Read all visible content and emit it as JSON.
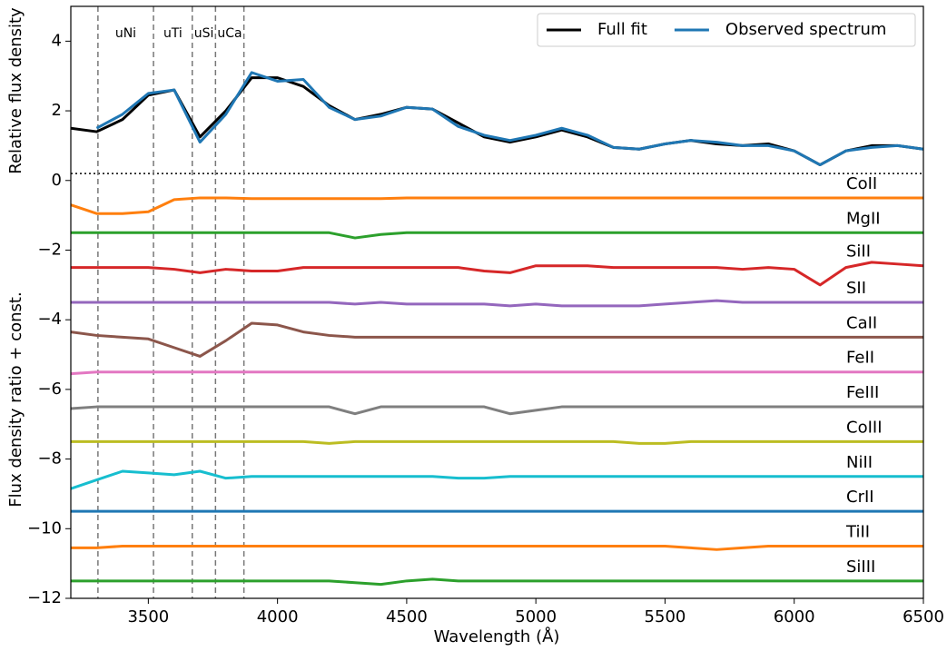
{
  "chart_data": {
    "type": "line",
    "xlabel": "Wavelength (Å)",
    "ylabels": [
      "Relative flux density",
      "Flux density ratio + const."
    ],
    "xlim": [
      3200,
      6500
    ],
    "ylim": [
      -12,
      5
    ],
    "xticks": [
      3500,
      4000,
      4500,
      5000,
      5500,
      6000,
      6500
    ],
    "yticks": [
      {
        "value": -12,
        "label": "−12"
      },
      {
        "value": -10,
        "label": "−10"
      },
      {
        "value": -8,
        "label": "−8"
      },
      {
        "value": -6,
        "label": "−6"
      },
      {
        "value": -4,
        "label": "−4"
      },
      {
        "value": -2,
        "label": "−2"
      },
      0,
      2,
      4
    ],
    "legend": "upper right",
    "hline": 0.2,
    "x": [
      3200,
      3300,
      3400,
      3500,
      3600,
      3700,
      3800,
      3900,
      4000,
      4100,
      4200,
      4300,
      4400,
      4500,
      4600,
      4700,
      4800,
      4900,
      5000,
      5100,
      5200,
      5300,
      5400,
      5500,
      5600,
      5700,
      5800,
      5900,
      6000,
      6100,
      6200,
      6300,
      6400,
      6500
    ],
    "series": [
      {
        "name": "Full fit",
        "color": "#000000",
        "values": [
          1.5,
          1.4,
          1.75,
          2.45,
          2.6,
          1.25,
          2.0,
          2.95,
          2.95,
          2.7,
          2.15,
          1.75,
          1.9,
          2.1,
          2.05,
          1.65,
          1.25,
          1.1,
          1.25,
          1.45,
          1.25,
          0.95,
          0.9,
          1.05,
          1.15,
          1.05,
          1.0,
          1.05,
          0.85,
          0.45,
          0.85,
          1.0,
          1.0,
          0.9
        ]
      },
      {
        "name": "Observed spectrum",
        "color": "#1f77b4",
        "values": [
          null,
          1.5,
          1.9,
          2.5,
          2.6,
          1.1,
          1.9,
          3.1,
          2.85,
          2.9,
          2.1,
          1.75,
          1.85,
          2.1,
          2.05,
          1.55,
          1.3,
          1.15,
          1.3,
          1.5,
          1.3,
          0.95,
          0.9,
          1.05,
          1.15,
          1.1,
          1.0,
          1.0,
          0.85,
          0.45,
          0.85,
          0.95,
          1.0,
          0.9
        ]
      }
    ],
    "components": [
      {
        "label": "CoII",
        "color": "#ff7f0e",
        "values": [
          -0.7,
          -0.95,
          -0.95,
          -0.9,
          -0.55,
          -0.5,
          -0.5,
          -0.52,
          -0.52,
          -0.52,
          -0.52,
          -0.52,
          -0.52,
          -0.5,
          -0.5,
          -0.5,
          -0.5,
          -0.5,
          -0.5,
          -0.5,
          -0.5,
          -0.5,
          -0.5,
          -0.5,
          -0.5,
          -0.5,
          -0.5,
          -0.5,
          -0.5,
          -0.5,
          -0.5,
          -0.5,
          -0.5,
          -0.5
        ]
      },
      {
        "label": "MgII",
        "color": "#2ca02c",
        "values": [
          -1.5,
          -1.5,
          -1.5,
          -1.5,
          -1.5,
          -1.5,
          -1.5,
          -1.5,
          -1.5,
          -1.5,
          -1.5,
          -1.65,
          -1.55,
          -1.5,
          -1.5,
          -1.5,
          -1.5,
          -1.5,
          -1.5,
          -1.5,
          -1.5,
          -1.5,
          -1.5,
          -1.5,
          -1.5,
          -1.5,
          -1.5,
          -1.5,
          -1.5,
          -1.5,
          -1.5,
          -1.5,
          -1.5,
          -1.5
        ]
      },
      {
        "label": "SiII",
        "color": "#d62728",
        "values": [
          -2.5,
          -2.5,
          -2.5,
          -2.5,
          -2.55,
          -2.65,
          -2.55,
          -2.6,
          -2.6,
          -2.5,
          -2.5,
          -2.5,
          -2.5,
          -2.5,
          -2.5,
          -2.5,
          -2.6,
          -2.65,
          -2.45,
          -2.45,
          -2.45,
          -2.5,
          -2.5,
          -2.5,
          -2.5,
          -2.5,
          -2.55,
          -2.5,
          -2.55,
          -3.0,
          -2.5,
          -2.35,
          -2.4,
          -2.45
        ]
      },
      {
        "label": "SII",
        "color": "#9467bd",
        "values": [
          -3.5,
          -3.5,
          -3.5,
          -3.5,
          -3.5,
          -3.5,
          -3.5,
          -3.5,
          -3.5,
          -3.5,
          -3.5,
          -3.55,
          -3.5,
          -3.55,
          -3.55,
          -3.55,
          -3.55,
          -3.6,
          -3.55,
          -3.6,
          -3.6,
          -3.6,
          -3.6,
          -3.55,
          -3.5,
          -3.45,
          -3.5,
          -3.5,
          -3.5,
          -3.5,
          -3.5,
          -3.5,
          -3.5,
          -3.5
        ]
      },
      {
        "label": "CaII",
        "color": "#8c564b",
        "values": [
          -4.35,
          -4.45,
          -4.5,
          -4.55,
          -4.8,
          -5.05,
          -4.6,
          -4.1,
          -4.15,
          -4.35,
          -4.45,
          -4.5,
          -4.5,
          -4.5,
          -4.5,
          -4.5,
          -4.5,
          -4.5,
          -4.5,
          -4.5,
          -4.5,
          -4.5,
          -4.5,
          -4.5,
          -4.5,
          -4.5,
          -4.5,
          -4.5,
          -4.5,
          -4.5,
          -4.5,
          -4.5,
          -4.5,
          -4.5
        ]
      },
      {
        "label": "FeII",
        "color": "#e377c2",
        "values": [
          -5.55,
          -5.5,
          -5.5,
          -5.5,
          -5.5,
          -5.5,
          -5.5,
          -5.5,
          -5.5,
          -5.5,
          -5.5,
          -5.5,
          -5.5,
          -5.5,
          -5.5,
          -5.5,
          -5.5,
          -5.5,
          -5.5,
          -5.5,
          -5.5,
          -5.5,
          -5.5,
          -5.5,
          -5.5,
          -5.5,
          -5.5,
          -5.5,
          -5.5,
          -5.5,
          -5.5,
          -5.5,
          -5.5,
          -5.5
        ]
      },
      {
        "label": "FeIII",
        "color": "#7f7f7f",
        "values": [
          -6.55,
          -6.5,
          -6.5,
          -6.5,
          -6.5,
          -6.5,
          -6.5,
          -6.5,
          -6.5,
          -6.5,
          -6.5,
          -6.7,
          -6.5,
          -6.5,
          -6.5,
          -6.5,
          -6.5,
          -6.7,
          -6.6,
          -6.5,
          -6.5,
          -6.5,
          -6.5,
          -6.5,
          -6.5,
          -6.5,
          -6.5,
          -6.5,
          -6.5,
          -6.5,
          -6.5,
          -6.5,
          -6.5,
          -6.5
        ]
      },
      {
        "label": "CoIII",
        "color": "#bcbd22",
        "values": [
          -7.5,
          -7.5,
          -7.5,
          -7.5,
          -7.5,
          -7.5,
          -7.5,
          -7.5,
          -7.5,
          -7.5,
          -7.55,
          -7.5,
          -7.5,
          -7.5,
          -7.5,
          -7.5,
          -7.5,
          -7.5,
          -7.5,
          -7.5,
          -7.5,
          -7.5,
          -7.55,
          -7.55,
          -7.5,
          -7.5,
          -7.5,
          -7.5,
          -7.5,
          -7.5,
          -7.5,
          -7.5,
          -7.5,
          -7.5
        ]
      },
      {
        "label": "NiII",
        "color": "#17becf",
        "values": [
          -8.85,
          -8.6,
          -8.35,
          -8.4,
          -8.45,
          -8.35,
          -8.55,
          -8.5,
          -8.5,
          -8.5,
          -8.5,
          -8.5,
          -8.5,
          -8.5,
          -8.5,
          -8.55,
          -8.55,
          -8.5,
          -8.5,
          -8.5,
          -8.5,
          -8.5,
          -8.5,
          -8.5,
          -8.5,
          -8.5,
          -8.5,
          -8.5,
          -8.5,
          -8.5,
          -8.5,
          -8.5,
          -8.5,
          -8.5
        ]
      },
      {
        "label": "CrII",
        "color": "#1f77b4",
        "values": [
          -9.5,
          -9.5,
          -9.5,
          -9.5,
          -9.5,
          -9.5,
          -9.5,
          -9.5,
          -9.5,
          -9.5,
          -9.5,
          -9.5,
          -9.5,
          -9.5,
          -9.5,
          -9.5,
          -9.5,
          -9.5,
          -9.5,
          -9.5,
          -9.5,
          -9.5,
          -9.5,
          -9.5,
          -9.5,
          -9.5,
          -9.5,
          -9.5,
          -9.5,
          -9.5,
          -9.5,
          -9.5,
          -9.5,
          -9.5
        ]
      },
      {
        "label": "TiII",
        "color": "#ff7f0e",
        "values": [
          -10.55,
          -10.55,
          -10.5,
          -10.5,
          -10.5,
          -10.5,
          -10.5,
          -10.5,
          -10.5,
          -10.5,
          -10.5,
          -10.5,
          -10.5,
          -10.5,
          -10.5,
          -10.5,
          -10.5,
          -10.5,
          -10.5,
          -10.5,
          -10.5,
          -10.5,
          -10.5,
          -10.5,
          -10.55,
          -10.6,
          -10.55,
          -10.5,
          -10.5,
          -10.5,
          -10.5,
          -10.5,
          -10.5,
          -10.5
        ]
      },
      {
        "label": "SiIII",
        "color": "#2ca02c",
        "values": [
          -11.5,
          -11.5,
          -11.5,
          -11.5,
          -11.5,
          -11.5,
          -11.5,
          -11.5,
          -11.5,
          -11.5,
          -11.5,
          -11.55,
          -11.6,
          -11.5,
          -11.45,
          -11.5,
          -11.5,
          -11.5,
          -11.5,
          -11.5,
          -11.5,
          -11.5,
          -11.5,
          -11.5,
          -11.5,
          -11.5,
          -11.5,
          -11.5,
          -11.5,
          -11.5,
          -11.5,
          -11.5,
          -11.5,
          -11.5
        ]
      }
    ],
    "vlines": [
      {
        "x": 3305,
        "label": "uNi"
      },
      {
        "x": 3520,
        "label": "uTi"
      },
      {
        "x": 3670,
        "label": "uSi"
      },
      {
        "x": 3760,
        "label": "uCa"
      },
      {
        "x": 3870,
        "label": null
      }
    ]
  }
}
